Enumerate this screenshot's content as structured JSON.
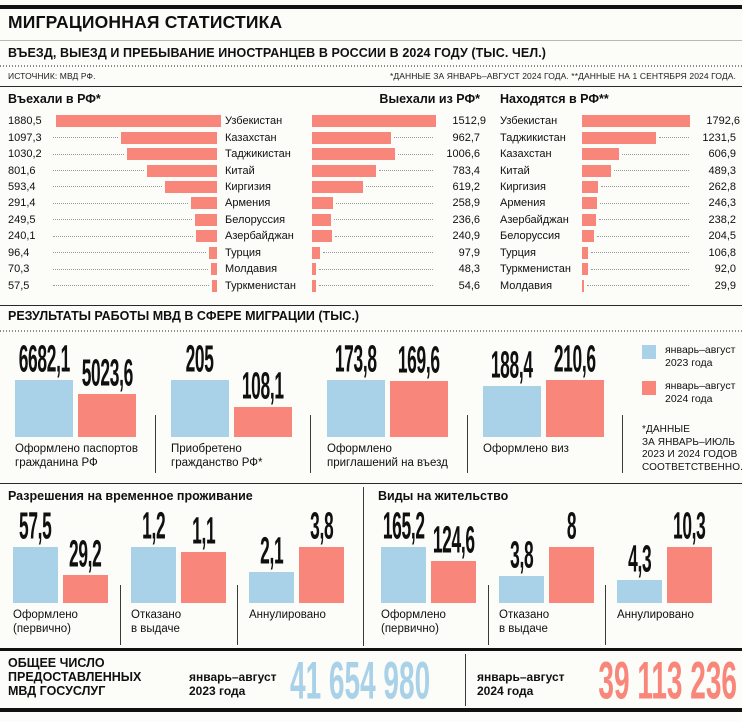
{
  "header": {
    "title": "МИГРАЦИОННАЯ СТАТИСТИКА",
    "subtitle": "ВЪЕЗД, ВЫЕЗД И ПРЕБЫВАНИЕ ИНОСТРАНЦЕВ В РОССИИ В 2024 ГОДУ (ТЫС. ЧЕЛ.)",
    "source": "ИСТОЧНИК: МВД РФ.",
    "notes": "*ДАННЫЕ ЗА ЯНВАРЬ–АВГУСТ 2024 ГОДА.  **ДАННЫЕ НА 1 СЕНТЯБРЯ 2024 ГОДА."
  },
  "colors": {
    "year2023": "#a9d1e8",
    "year2024": "#f9867b"
  },
  "legend": [
    {
      "label": "январь–август\n2023 года"
    },
    {
      "label": "январь–август\n2024 года"
    }
  ],
  "mid_footnote": "*ДАННЫЕ\nЗА ЯНВАРЬ–ИЮЛЬ\n2023 И 2024 ГОДОВ\nСООТВЕТСТВЕННО.",
  "chart_data": [
    {
      "type": "bar",
      "title": "Въехали в РФ*",
      "orientation": "horizontal",
      "unit": "тыс. чел.",
      "categories": [
        "Узбекистан",
        "Казахстан",
        "Таджикистан",
        "Китай",
        "Киргизия",
        "Армения",
        "Белоруссия",
        "Азербайджан",
        "Турция",
        "Молдавия",
        "Туркменистан"
      ],
      "values": [
        "1880,5",
        "1097,3",
        "1030,2",
        "801,6",
        "593,4",
        "291,4",
        "249,5",
        "240,1",
        "96,4",
        "70,3",
        "57,5"
      ]
    },
    {
      "type": "bar",
      "title": "Выехали из РФ*",
      "orientation": "horizontal",
      "unit": "тыс. чел.",
      "categories": [
        "Узбекистан",
        "Казахстан",
        "Таджикистан",
        "Китай",
        "Киргизия",
        "Армения",
        "Белоруссия",
        "Азербайджан",
        "Турция",
        "Молдавия",
        "Туркменистан"
      ],
      "values": [
        "1512,9",
        "962,7",
        "1006,6",
        "783,4",
        "619,2",
        "258,9",
        "236,6",
        "240,9",
        "97,9",
        "48,3",
        "54,6"
      ]
    },
    {
      "type": "bar",
      "title": "Находятся в РФ**",
      "orientation": "horizontal",
      "unit": "тыс. чел.",
      "categories": [
        "Узбекистан",
        "Таджикистан",
        "Казахстан",
        "Китай",
        "Киргизия",
        "Армения",
        "Азербайджан",
        "Белоруссия",
        "Турция",
        "Туркменистан",
        "Молдавия"
      ],
      "values": [
        "1792,6",
        "1231,5",
        "606,9",
        "489,3",
        "262,8",
        "246,3",
        "238,2",
        "204,5",
        "106,8",
        "92,0",
        "29,9"
      ]
    },
    {
      "type": "bar",
      "title": "РЕЗУЛЬТАТЫ РАБОТЫ МВД В СФЕРЕ МИГРАЦИИ (ТЫС.)",
      "orientation": "vertical",
      "series": [
        "январь–август 2023 года",
        "январь–август 2024 года"
      ],
      "groups": [
        {
          "label": "Оформлено паспортов\nгражданина РФ",
          "values": [
            "6682,1",
            "5023,6"
          ]
        },
        {
          "label": "Приобретено\nгражданство РФ*",
          "values": [
            "205",
            "108,1"
          ]
        },
        {
          "label": "Оформлено\nприглашений на въезд",
          "values": [
            "173,8",
            "169,6"
          ]
        },
        {
          "label": "Оформлено виз",
          "values": [
            "188,4",
            "210,6"
          ]
        }
      ]
    },
    {
      "type": "bar",
      "title": "Разрешения на временное проживание",
      "orientation": "vertical",
      "series": [
        "январь–август 2023 года",
        "январь–август 2024 года"
      ],
      "groups": [
        {
          "label": "Оформлено\n(первично)",
          "values": [
            "57,5",
            "29,2"
          ]
        },
        {
          "label": "Отказано\nв выдаче",
          "values": [
            "1,2",
            "1,1"
          ]
        },
        {
          "label": "Аннулировано",
          "values": [
            "2,1",
            "3,8"
          ]
        }
      ]
    },
    {
      "type": "bar",
      "title": "Виды на жительство",
      "orientation": "vertical",
      "series": [
        "январь–август 2023 года",
        "январь–август 2024 года"
      ],
      "groups": [
        {
          "label": "Оформлено\n(первично)",
          "values": [
            "165,2",
            "124,6"
          ]
        },
        {
          "label": "Отказано\nв выдаче",
          "values": [
            "3,8",
            "8"
          ]
        },
        {
          "label": "Аннулировано",
          "values": [
            "4,3",
            "10,3"
          ]
        }
      ]
    }
  ],
  "footer": {
    "label": "ОБЩЕЕ ЧИСЛО\nПРЕДОСТАВЛЕННЫХ\nМВД ГОСУСЛУГ",
    "entries": [
      {
        "period": "январь–август\n2023 года",
        "value": "41 654 980"
      },
      {
        "period": "январь–август\n2024 года",
        "value": "39 113 236"
      }
    ]
  }
}
